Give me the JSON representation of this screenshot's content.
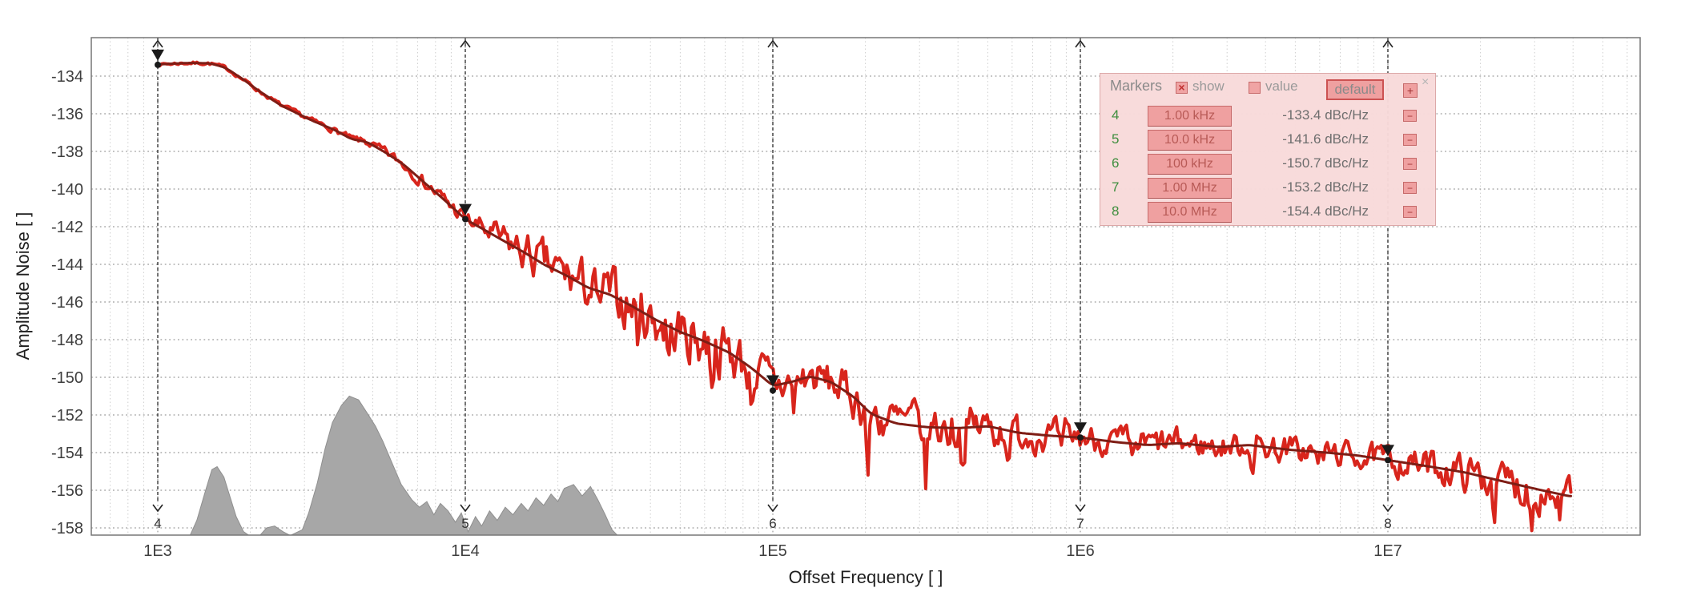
{
  "chart_data": {
    "type": "line",
    "title": "",
    "xlabel": "Offset Frequency [ ]",
    "ylabel": "Amplitude Noise [ ]",
    "x_scale": "log",
    "xlim": [
      608,
      66800000
    ],
    "ylim": [
      -158.4,
      -132.0
    ],
    "grid": "dotted",
    "x_tick_decades": [
      3,
      4,
      5,
      6,
      7
    ],
    "x_tick_labels": [
      "1E3",
      "1E4",
      "1E5",
      "1E6",
      "1E7"
    ],
    "y_tick_values": [
      -134,
      -136,
      -138,
      -140,
      -142,
      -144,
      -146,
      -148,
      -150,
      -152,
      -154,
      -156,
      -158
    ],
    "y_tick_labels": [
      "-134",
      "-136",
      "-138",
      "-140",
      "-142",
      "-144",
      "-146",
      "-148",
      "-150",
      "-152",
      "-154",
      "-156",
      "-158"
    ],
    "series": [
      {
        "name": "average",
        "label": "smoothed amplitude noise trace",
        "color": "#7e1d15",
        "width": 3,
        "points_logf_db": [
          [
            3.0,
            -133.38
          ],
          [
            3.1,
            -133.3
          ],
          [
            3.17,
            -133.32
          ],
          [
            3.22,
            -133.55
          ],
          [
            3.28,
            -134.2
          ],
          [
            3.33,
            -134.8
          ],
          [
            3.4,
            -135.55
          ],
          [
            3.5,
            -136.35
          ],
          [
            3.58,
            -136.9
          ],
          [
            3.63,
            -137.35
          ],
          [
            3.68,
            -137.5
          ],
          [
            3.74,
            -138.05
          ],
          [
            3.8,
            -138.7
          ],
          [
            3.87,
            -139.7
          ],
          [
            3.93,
            -140.55
          ],
          [
            4.0,
            -141.6
          ],
          [
            4.06,
            -142.15
          ],
          [
            4.13,
            -142.8
          ],
          [
            4.19,
            -143.35
          ],
          [
            4.26,
            -144.05
          ],
          [
            4.33,
            -144.6
          ],
          [
            4.4,
            -145.25
          ],
          [
            4.47,
            -145.6
          ],
          [
            4.54,
            -146.2
          ],
          [
            4.62,
            -146.95
          ],
          [
            4.7,
            -147.6
          ],
          [
            4.78,
            -148.1
          ],
          [
            4.86,
            -148.7
          ],
          [
            4.93,
            -149.5
          ],
          [
            5.0,
            -150.45
          ],
          [
            5.06,
            -150.25
          ],
          [
            5.12,
            -149.95
          ],
          [
            5.19,
            -150.25
          ],
          [
            5.26,
            -151.0
          ],
          [
            5.32,
            -151.95
          ],
          [
            5.4,
            -152.45
          ],
          [
            5.5,
            -152.65
          ],
          [
            5.6,
            -152.7
          ],
          [
            5.7,
            -152.6
          ],
          [
            5.8,
            -152.95
          ],
          [
            5.9,
            -153.1
          ],
          [
            6.0,
            -153.2
          ],
          [
            6.12,
            -153.45
          ],
          [
            6.22,
            -153.6
          ],
          [
            6.32,
            -153.5
          ],
          [
            6.45,
            -153.7
          ],
          [
            6.55,
            -153.6
          ],
          [
            6.68,
            -153.85
          ],
          [
            6.8,
            -154.0
          ],
          [
            6.9,
            -154.15
          ],
          [
            7.0,
            -154.4
          ],
          [
            7.12,
            -154.7
          ],
          [
            7.25,
            -155.05
          ],
          [
            7.38,
            -155.55
          ],
          [
            7.5,
            -156.0
          ],
          [
            7.6,
            -156.35
          ]
        ]
      },
      {
        "name": "raw",
        "label": "measured amplitude noise trace",
        "color": "#d8251c",
        "width": 4,
        "derived_from": "average",
        "noise_seed": 7,
        "noise_envelope_logf_db": [
          [
            3.0,
            0.06
          ],
          [
            3.3,
            0.07
          ],
          [
            3.5,
            0.1
          ],
          [
            3.7,
            0.16
          ],
          [
            3.85,
            0.25
          ],
          [
            4.0,
            0.35
          ],
          [
            4.1,
            0.55
          ],
          [
            4.2,
            0.8
          ],
          [
            4.35,
            0.95
          ],
          [
            4.5,
            1.05
          ],
          [
            4.7,
            1.15
          ],
          [
            4.9,
            1.1
          ],
          [
            5.0,
            0.95
          ],
          [
            5.1,
            0.8
          ],
          [
            5.2,
            0.75
          ],
          [
            5.32,
            0.9
          ],
          [
            5.45,
            1.0
          ],
          [
            5.6,
            0.9
          ],
          [
            5.75,
            0.8
          ],
          [
            5.9,
            0.62
          ],
          [
            6.05,
            0.55
          ],
          [
            6.2,
            0.6
          ],
          [
            6.45,
            0.5
          ],
          [
            6.7,
            0.55
          ],
          [
            6.9,
            0.5
          ],
          [
            7.1,
            0.6
          ],
          [
            7.3,
            0.75
          ],
          [
            7.45,
            0.85
          ],
          [
            7.6,
            0.8
          ]
        ],
        "down_spikes_logf_depth": [
          [
            4.43,
            1.5
          ],
          [
            4.56,
            1.2
          ],
          [
            4.66,
            1.8
          ],
          [
            4.8,
            1.3
          ],
          [
            4.93,
            1.6
          ],
          [
            5.07,
            1.4
          ],
          [
            5.31,
            3.3
          ],
          [
            5.5,
            3.0
          ],
          [
            5.62,
            1.9
          ],
          [
            5.77,
            1.8
          ],
          [
            5.94,
            1.2
          ],
          [
            6.17,
            1.3
          ],
          [
            6.56,
            1.1
          ],
          [
            6.77,
            1.0
          ],
          [
            7.35,
            1.4
          ],
          [
            7.47,
            1.8
          ],
          [
            7.56,
            1.2
          ]
        ]
      },
      {
        "name": "spur-density",
        "label": "gray filled spur density",
        "color": "#a7a7a7",
        "stroke": "#8f8f8f",
        "fill": true,
        "points_logf_db": [
          [
            3.105,
            -158.4
          ],
          [
            3.127,
            -157.6
          ],
          [
            3.152,
            -156.2
          ],
          [
            3.176,
            -154.9
          ],
          [
            3.193,
            -154.75
          ],
          [
            3.215,
            -155.3
          ],
          [
            3.236,
            -156.4
          ],
          [
            3.255,
            -157.4
          ],
          [
            3.279,
            -158.2
          ],
          [
            3.297,
            -158.4
          ],
          [
            3.332,
            -158.4
          ],
          [
            3.354,
            -158.0
          ],
          [
            3.38,
            -157.9
          ],
          [
            3.407,
            -158.2
          ],
          [
            3.431,
            -158.4
          ],
          [
            3.47,
            -158.1
          ],
          [
            3.491,
            -157.2
          ],
          [
            3.519,
            -155.6
          ],
          [
            3.544,
            -153.8
          ],
          [
            3.568,
            -152.4
          ],
          [
            3.597,
            -151.5
          ],
          [
            3.623,
            -151.0
          ],
          [
            3.653,
            -151.2
          ],
          [
            3.681,
            -151.9
          ],
          [
            3.708,
            -152.6
          ],
          [
            3.732,
            -153.4
          ],
          [
            3.763,
            -154.6
          ],
          [
            3.792,
            -155.7
          ],
          [
            3.826,
            -156.5
          ],
          [
            3.851,
            -156.9
          ],
          [
            3.875,
            -156.6
          ],
          [
            3.898,
            -157.3
          ],
          [
            3.919,
            -156.7
          ],
          [
            3.944,
            -157.1
          ],
          [
            3.968,
            -157.7
          ],
          [
            3.987,
            -157.2
          ],
          [
            4.009,
            -158.2
          ],
          [
            4.033,
            -157.4
          ],
          [
            4.053,
            -157.9
          ],
          [
            4.079,
            -157.1
          ],
          [
            4.104,
            -157.6
          ],
          [
            4.13,
            -156.9
          ],
          [
            4.155,
            -157.3
          ],
          [
            4.182,
            -156.7
          ],
          [
            4.204,
            -157.1
          ],
          [
            4.23,
            -156.4
          ],
          [
            4.255,
            -156.8
          ],
          [
            4.279,
            -156.2
          ],
          [
            4.301,
            -156.6
          ],
          [
            4.322,
            -155.9
          ],
          [
            4.352,
            -155.7
          ],
          [
            4.38,
            -156.3
          ],
          [
            4.407,
            -155.8
          ],
          [
            4.431,
            -156.5
          ],
          [
            4.455,
            -157.3
          ],
          [
            4.477,
            -158.1
          ],
          [
            4.495,
            -158.4
          ]
        ]
      }
    ],
    "markers": [
      {
        "id": "4",
        "freq_hz": 1000,
        "freq_label": "1.00 kHz",
        "value": -133.4,
        "value_label": "-133.4 dBc/Hz"
      },
      {
        "id": "5",
        "freq_hz": 10000,
        "freq_label": "10.0 kHz",
        "value": -141.6,
        "value_label": "-141.6 dBc/Hz"
      },
      {
        "id": "6",
        "freq_hz": 100000,
        "freq_label": "100 kHz",
        "value": -150.7,
        "value_label": "-150.7 dBc/Hz"
      },
      {
        "id": "7",
        "freq_hz": 1000000,
        "freq_label": "1.00 MHz",
        "value": -153.2,
        "value_label": "-153.2 dBc/Hz"
      },
      {
        "id": "8",
        "freq_hz": 10000000,
        "freq_label": "10.0 MHz",
        "value": -154.4,
        "value_label": "-154.4 dBc/Hz"
      }
    ]
  },
  "markers_panel": {
    "title": "Markers",
    "show_label": "show",
    "show_checked": true,
    "value_label": "value",
    "value_checked": false,
    "default_label": "default",
    "add_label": "+",
    "remove_label": "−",
    "close_glyph": "×",
    "check_glyph": "×",
    "rows": [
      {
        "id": "4",
        "freq": "1.00 kHz",
        "value": "-133.4 dBc/Hz"
      },
      {
        "id": "5",
        "freq": "10.0 kHz",
        "value": "-141.6 dBc/Hz"
      },
      {
        "id": "6",
        "freq": "100 kHz",
        "value": "-150.7 dBc/Hz"
      },
      {
        "id": "7",
        "freq": "1.00 MHz",
        "value": "-153.2 dBc/Hz"
      },
      {
        "id": "8",
        "freq": "10.0 MHz",
        "value": "-154.4 dBc/Hz"
      }
    ]
  },
  "colors": {
    "raw_trace": "#d8251c",
    "average_trace": "#7e1d15",
    "spur_fill": "#a7a7a7",
    "grid_major": "#9b9b9b",
    "grid_minor": "#cfcfcf",
    "plot_border": "#777777",
    "marker_black": "#1a1a1a",
    "panel_bg": "#f8dada",
    "panel_button": "#efa0a0",
    "panel_button_border": "#c66a6a",
    "row_number_green": "#3e8e3e"
  }
}
